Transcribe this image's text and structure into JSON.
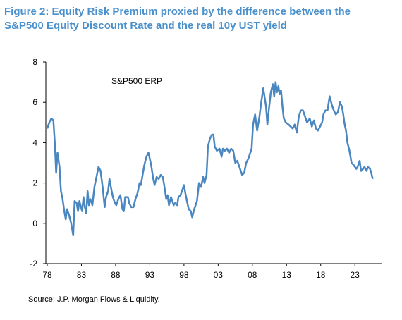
{
  "chart_data": {
    "type": "line",
    "title": [
      "Figure 2: Equity Risk Premium proxied by the difference between the",
      "S&P500 Equity Discount Rate and the real 10y UST yield"
    ],
    "annotation": "S&P500 ERP",
    "source": "Source: J.P. Morgan Flows & Liquidity.",
    "x": [
      1978.0,
      1978.3,
      1978.6,
      1978.9,
      1979.1,
      1979.3,
      1979.5,
      1979.8,
      1980.0,
      1980.2,
      1980.5,
      1980.7,
      1980.9,
      1981.2,
      1981.5,
      1981.8,
      1982.0,
      1982.3,
      1982.5,
      1982.7,
      1983.1,
      1983.3,
      1983.5,
      1983.7,
      1983.9,
      1984.1,
      1984.3,
      1984.6,
      1984.9,
      1985.2,
      1985.5,
      1985.8,
      1986.1,
      1986.4,
      1986.6,
      1986.9,
      1987.1,
      1987.3,
      1987.6,
      1987.9,
      1988.1,
      1988.4,
      1988.7,
      1989.0,
      1989.2,
      1989.4,
      1989.8,
      1990.0,
      1990.3,
      1990.6,
      1990.9,
      1991.2,
      1991.5,
      1991.7,
      1991.9,
      1992.2,
      1992.5,
      1992.8,
      1993.2,
      1993.5,
      1993.7,
      1994.0,
      1994.3,
      1994.6,
      1994.9,
      1995.1,
      1995.4,
      1995.6,
      1995.8,
      1996.1,
      1996.5,
      1996.7,
      1997.0,
      1997.2,
      1997.5,
      1997.7,
      1998.0,
      1998.2,
      1998.5,
      1998.7,
      1999.0,
      1999.2,
      1999.5,
      1999.9,
      2000.2,
      2000.5,
      2000.8,
      2001.0,
      2001.3,
      2001.5,
      2001.8,
      2002.1,
      2002.3,
      2002.5,
      2002.8,
      2003.2,
      2003.5,
      2003.7,
      2004.0,
      2004.3,
      2004.6,
      2004.9,
      2005.2,
      2005.5,
      2005.8,
      2006.1,
      2006.5,
      2006.8,
      2007.1,
      2007.4,
      2007.7,
      2007.9,
      2008.1,
      2008.4,
      2008.7,
      2009.0,
      2009.3,
      2009.6,
      2010.0,
      2010.2,
      2010.4,
      2010.7,
      2011.0,
      2011.2,
      2011.4,
      2011.6,
      2011.8,
      2012.0,
      2012.2,
      2012.4,
      2012.6,
      2012.9,
      2013.3,
      2013.6,
      2013.9,
      2014.2,
      2014.5,
      2014.8,
      2015.1,
      2015.4,
      2015.7,
      2016.0,
      2016.4,
      2016.7,
      2017.0,
      2017.3,
      2017.6,
      2017.9,
      2018.2,
      2018.4,
      2018.7,
      2019.0,
      2019.3,
      2019.6,
      2019.9,
      2020.2,
      2020.5,
      2020.8,
      2021.1,
      2021.3,
      2021.5,
      2021.7,
      2021.9,
      2022.2,
      2022.5,
      2022.8,
      2023.2,
      2023.4,
      2023.7,
      2023.9,
      2024.2,
      2024.4,
      2024.7,
      2024.9,
      2025.2,
      2025.4,
      2025.6
    ],
    "series": [
      {
        "name": "S&P500 ERP",
        "color": "#4a86c0",
        "values": [
          4.7,
          5.0,
          5.2,
          5.1,
          4.0,
          2.5,
          3.5,
          2.8,
          1.6,
          1.3,
          0.6,
          0.2,
          0.7,
          0.4,
          0.0,
          -0.6,
          1.1,
          1.0,
          0.6,
          1.1,
          0.6,
          1.3,
          0.8,
          0.5,
          1.6,
          0.9,
          1.2,
          0.9,
          1.8,
          2.3,
          2.8,
          2.6,
          1.8,
          0.8,
          1.3,
          1.6,
          2.2,
          1.8,
          1.3,
          1.0,
          0.9,
          1.2,
          1.4,
          0.7,
          0.6,
          1.3,
          1.3,
          1.0,
          0.8,
          0.8,
          1.2,
          1.5,
          2.0,
          1.9,
          2.3,
          2.9,
          3.3,
          3.5,
          2.9,
          2.2,
          1.9,
          2.3,
          2.2,
          2.4,
          2.3,
          1.9,
          1.2,
          1.4,
          0.9,
          1.3,
          0.9,
          1.0,
          0.9,
          1.3,
          1.4,
          1.6,
          1.9,
          1.5,
          1.0,
          0.7,
          0.6,
          0.3,
          0.7,
          1.1,
          2.0,
          1.8,
          2.3,
          2.0,
          2.4,
          3.8,
          4.2,
          4.4,
          4.4,
          3.8,
          3.6,
          3.7,
          3.3,
          3.7,
          3.6,
          3.7,
          3.5,
          3.7,
          3.6,
          3.0,
          3.1,
          2.8,
          2.4,
          2.5,
          3.0,
          3.2,
          3.5,
          3.7,
          4.9,
          5.4,
          4.6,
          5.2,
          6.0,
          6.7,
          5.8,
          4.9,
          5.6,
          6.5,
          6.9,
          6.3,
          7.0,
          6.5,
          6.8,
          6.4,
          6.6,
          5.8,
          5.2,
          5.0,
          4.9,
          4.8,
          4.7,
          4.9,
          4.5,
          5.3,
          5.6,
          5.6,
          5.3,
          5.0,
          5.2,
          4.8,
          5.1,
          4.7,
          4.6,
          4.8,
          5.0,
          5.4,
          5.6,
          5.6,
          6.3,
          5.9,
          5.6,
          5.4,
          5.5,
          6.0,
          5.8,
          5.4,
          4.9,
          4.6,
          4.0,
          3.6,
          3.0,
          2.9,
          2.7,
          2.8,
          3.1,
          2.6,
          2.7,
          2.8,
          2.6,
          2.8,
          2.7,
          2.5,
          2.2
        ]
      }
    ],
    "xlim": [
      1978,
      2027
    ],
    "ylim": [
      -2,
      8
    ],
    "xticks": [
      {
        "value": 1978,
        "label": "78"
      },
      {
        "value": 1983,
        "label": "83"
      },
      {
        "value": 1988,
        "label": "88"
      },
      {
        "value": 1993,
        "label": "93"
      },
      {
        "value": 1998,
        "label": "98"
      },
      {
        "value": 2003,
        "label": "03"
      },
      {
        "value": 2008,
        "label": "08"
      },
      {
        "value": 2013,
        "label": "13"
      },
      {
        "value": 2018,
        "label": "18"
      },
      {
        "value": 2023,
        "label": "23"
      }
    ],
    "yticks": [
      -2,
      0,
      2,
      4,
      6,
      8
    ]
  }
}
